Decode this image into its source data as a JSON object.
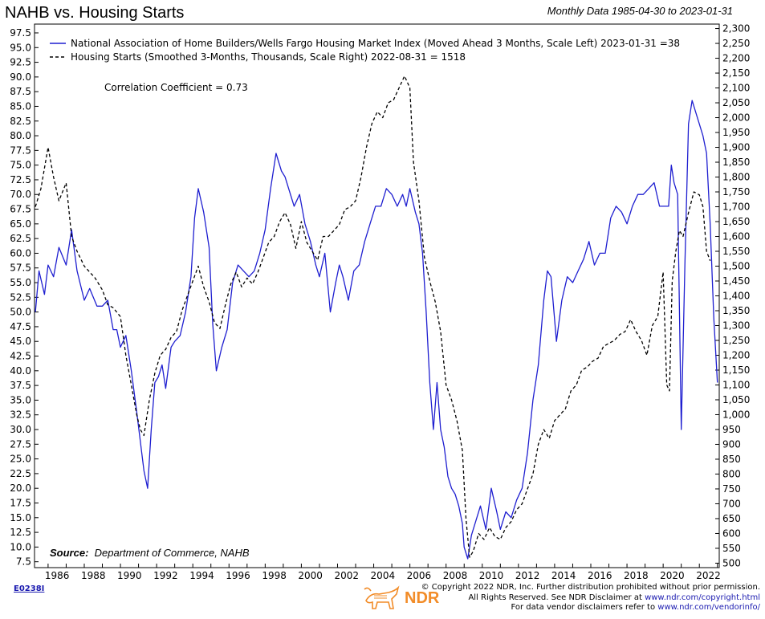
{
  "header": {
    "title": "NAHB vs. Housing Starts",
    "subtitle": "Monthly Data 1985-04-30 to 2023-01-31"
  },
  "colors": {
    "nahb": "#1f1fd0",
    "starts": "#000000",
    "logo": "#f28c28",
    "link": "#1a1ab0"
  },
  "chart_data": {
    "type": "line",
    "title": "NAHB vs. Housing Starts",
    "x_ticks": [
      "1986",
      "1988",
      "1990",
      "1992",
      "1994",
      "1996",
      "1998",
      "2000",
      "2002",
      "2004",
      "2006",
      "2008",
      "2010",
      "2012",
      "2014",
      "2016",
      "2018",
      "2020",
      "2022"
    ],
    "x_range": [
      1985.25,
      2023.1
    ],
    "y_left": {
      "range": [
        6.5,
        99.0
      ],
      "ticks": [
        "97.5",
        "95.0",
        "92.5",
        "90.0",
        "87.5",
        "85.0",
        "82.5",
        "80.0",
        "77.5",
        "75.0",
        "72.5",
        "70.0",
        "67.5",
        "65.0",
        "62.5",
        "60.0",
        "57.5",
        "55.0",
        "52.5",
        "50.0",
        "47.5",
        "45.0",
        "42.5",
        "40.0",
        "37.5",
        "35.0",
        "32.5",
        "30.0",
        "27.5",
        "25.0",
        "22.5",
        "20.0",
        "17.5",
        "15.0",
        "12.5",
        "10.0",
        "7.5"
      ]
    },
    "y_right": {
      "range": [
        485,
        2315
      ],
      "ticks": [
        "2,300",
        "2,250",
        "2,200",
        "2,150",
        "2,100",
        "2,050",
        "2,000",
        "1,950",
        "1,900",
        "1,850",
        "1,800",
        "1,750",
        "1,700",
        "1,650",
        "1,600",
        "1,550",
        "1,500",
        "1,450",
        "1,400",
        "1,350",
        "1,300",
        "1,250",
        "1,200",
        "1,150",
        "1,100",
        "1,050",
        "1,000",
        "950",
        "900",
        "850",
        "800",
        "750",
        "700",
        "650",
        "600",
        "550",
        "500"
      ]
    },
    "legend": [
      "National Association of Home Builders/Wells Fargo Housing Market Index (Moved Ahead 3 Months, Scale Left) 2023-01-31 =38",
      "Housing Starts (Smoothed 3-Months, Thousands, Scale Right) 2022-08-31 = 1518"
    ],
    "annotation": "Correlation Coefficient = 0.73",
    "series": [
      {
        "name": "National Association of Home Builders/Wells Fargo Housing Market Index (Moved Ahead 3 Months, Scale Left)",
        "axis": "left",
        "style": "solid",
        "x": [
          1985.3,
          1985.5,
          1985.8,
          1986.0,
          1986.3,
          1986.6,
          1987.0,
          1987.3,
          1987.6,
          1988.0,
          1988.3,
          1988.7,
          1989.0,
          1989.3,
          1989.6,
          1989.8,
          1990.0,
          1990.3,
          1990.6,
          1990.9,
          1991.1,
          1991.3,
          1991.5,
          1991.7,
          1991.9,
          1992.1,
          1992.3,
          1992.5,
          1992.8,
          1993.0,
          1993.3,
          1993.6,
          1993.9,
          1994.1,
          1994.3,
          1994.6,
          1994.9,
          1995.1,
          1995.3,
          1995.6,
          1995.9,
          1996.2,
          1996.5,
          1996.8,
          1997.1,
          1997.4,
          1997.7,
          1998.0,
          1998.3,
          1998.6,
          1998.9,
          1999.1,
          1999.3,
          1999.6,
          1999.9,
          2000.2,
          2000.5,
          2000.8,
          2001.0,
          2001.3,
          2001.6,
          2001.9,
          2002.1,
          2002.3,
          2002.6,
          2002.9,
          2003.2,
          2003.5,
          2003.8,
          2004.1,
          2004.4,
          2004.7,
          2005.0,
          2005.3,
          2005.6,
          2005.8,
          2006.0,
          2006.3,
          2006.5,
          2006.7,
          2006.9,
          2007.1,
          2007.3,
          2007.5,
          2007.7,
          2007.9,
          2008.1,
          2008.3,
          2008.5,
          2008.7,
          2008.9,
          2009.0,
          2009.2,
          2009.4,
          2009.6,
          2009.9,
          2010.2,
          2010.5,
          2010.8,
          2011.0,
          2011.3,
          2011.6,
          2011.9,
          2012.2,
          2012.5,
          2012.8,
          2013.1,
          2013.4,
          2013.6,
          2013.8,
          2014.1,
          2014.4,
          2014.7,
          2015.0,
          2015.3,
          2015.6,
          2015.9,
          2016.2,
          2016.5,
          2016.8,
          2017.1,
          2017.4,
          2017.7,
          2018.0,
          2018.3,
          2018.6,
          2018.9,
          2019.2,
          2019.5,
          2019.8,
          2020.1,
          2020.3,
          2020.45,
          2020.6,
          2020.8,
          2021.0,
          2021.2,
          2021.4,
          2021.6,
          2021.8,
          2022.0,
          2022.2,
          2022.4,
          2022.6,
          2022.8,
          2023.0
        ],
        "y": [
          50,
          57,
          53,
          58,
          56,
          61,
          58,
          64,
          57,
          52,
          54,
          51,
          51,
          52,
          47,
          47,
          44,
          46,
          40,
          33,
          28,
          23,
          20,
          30,
          38,
          39,
          41,
          37,
          44,
          45,
          46,
          50,
          56,
          66,
          71,
          67,
          61,
          48,
          40,
          44,
          47,
          55,
          58,
          57,
          56,
          57,
          60,
          64,
          71,
          77,
          74,
          73,
          71,
          68,
          70,
          65,
          62,
          58,
          56,
          60,
          50,
          55,
          58,
          56,
          52,
          57,
          58,
          62,
          65,
          68,
          68,
          71,
          70,
          68,
          70,
          68,
          71,
          67,
          65,
          60,
          50,
          38,
          30,
          38,
          30,
          27,
          22,
          20,
          19,
          17,
          14,
          10,
          8,
          12,
          14,
          17,
          13,
          20,
          16,
          13,
          16,
          15,
          18,
          20,
          26,
          35,
          41,
          52,
          57,
          56,
          45,
          52,
          56,
          55,
          57,
          59,
          62,
          58,
          60,
          60,
          66,
          68,
          67,
          65,
          68,
          70,
          70,
          71,
          72,
          68,
          68,
          68,
          75,
          72,
          70,
          30,
          58,
          82,
          86,
          84,
          82,
          80,
          77,
          65,
          49,
          38
        ]
      },
      {
        "name": "Housing Starts (Smoothed 3-Months, Thousands, Scale Right)",
        "axis": "right",
        "style": "dashed",
        "x": [
          1985.3,
          1985.6,
          1986.0,
          1986.3,
          1986.6,
          1987.0,
          1987.3,
          1987.6,
          1988.0,
          1988.3,
          1988.6,
          1989.0,
          1989.3,
          1989.6,
          1990.0,
          1990.3,
          1990.6,
          1990.9,
          1991.1,
          1991.3,
          1991.6,
          1991.9,
          1992.2,
          1992.5,
          1992.8,
          1993.1,
          1993.4,
          1993.7,
          1994.0,
          1994.3,
          1994.6,
          1994.9,
          1995.2,
          1995.5,
          1995.8,
          1996.1,
          1996.4,
          1996.7,
          1997.0,
          1997.3,
          1997.6,
          1997.9,
          1998.2,
          1998.5,
          1998.8,
          1999.1,
          1999.4,
          1999.7,
          2000.0,
          2000.3,
          2000.6,
          2000.9,
          2001.2,
          2001.5,
          2001.8,
          2002.1,
          2002.4,
          2002.7,
          2003.0,
          2003.3,
          2003.6,
          2003.9,
          2004.2,
          2004.5,
          2004.8,
          2005.1,
          2005.4,
          2005.7,
          2006.0,
          2006.2,
          2006.5,
          2006.8,
          2007.1,
          2007.4,
          2007.7,
          2008.0,
          2008.3,
          2008.6,
          2008.9,
          2009.1,
          2009.3,
          2009.5,
          2009.8,
          2010.1,
          2010.4,
          2010.7,
          2011.0,
          2011.3,
          2011.6,
          2011.9,
          2012.2,
          2012.5,
          2012.8,
          2013.1,
          2013.4,
          2013.7,
          2014.0,
          2014.3,
          2014.6,
          2014.9,
          2015.2,
          2015.5,
          2015.8,
          2016.1,
          2016.4,
          2016.7,
          2017.0,
          2017.3,
          2017.6,
          2017.9,
          2018.2,
          2018.5,
          2018.8,
          2019.1,
          2019.4,
          2019.7,
          2020.0,
          2020.2,
          2020.35,
          2020.5,
          2020.7,
          2020.9,
          2021.1,
          2021.4,
          2021.7,
          2022.0,
          2022.2,
          2022.4,
          2022.6
        ],
        "y": [
          1700,
          1760,
          1900,
          1800,
          1720,
          1780,
          1600,
          1550,
          1500,
          1480,
          1460,
          1420,
          1370,
          1360,
          1330,
          1200,
          1100,
          1000,
          950,
          930,
          1050,
          1140,
          1200,
          1220,
          1260,
          1280,
          1350,
          1400,
          1450,
          1500,
          1430,
          1380,
          1310,
          1290,
          1370,
          1440,
          1480,
          1430,
          1460,
          1440,
          1480,
          1530,
          1580,
          1600,
          1650,
          1680,
          1640,
          1560,
          1650,
          1580,
          1550,
          1520,
          1600,
          1600,
          1620,
          1640,
          1690,
          1700,
          1720,
          1800,
          1900,
          1980,
          2020,
          2000,
          2050,
          2060,
          2100,
          2140,
          2100,
          1850,
          1720,
          1530,
          1450,
          1380,
          1280,
          1100,
          1050,
          980,
          880,
          650,
          520,
          540,
          600,
          580,
          620,
          590,
          580,
          620,
          640,
          680,
          700,
          750,
          800,
          900,
          950,
          920,
          980,
          1000,
          1020,
          1080,
          1100,
          1150,
          1160,
          1180,
          1190,
          1230,
          1240,
          1250,
          1270,
          1280,
          1320,
          1280,
          1250,
          1200,
          1300,
          1330,
          1480,
          1100,
          1080,
          1450,
          1550,
          1620,
          1600,
          1680,
          1750,
          1740,
          1700,
          1550,
          1518
        ]
      }
    ]
  },
  "footer": {
    "source_label": "Source:",
    "source_text": "Department of Commerce, NAHB",
    "chart_code": "E0238I",
    "logo_text": "NDR",
    "copyright_line1": "© Copyright 2022 NDR, Inc. Further distribution prohibited without prior permission.",
    "copyright_line2_text": "All Rights Reserved. See NDR Disclaimer at",
    "copyright_line2_link": "www.ndr.com/copyright.html",
    "copyright_line3_text": "For data vendor disclaimers refer to",
    "copyright_line3_link": "www.ndr.com/vendorinfo/"
  }
}
